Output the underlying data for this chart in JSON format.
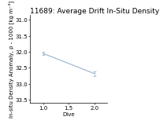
{
  "title": "11689: Average Drift In-Situ Density",
  "xlabel": "Dive",
  "ylabel": "In-situ Density Anomaly, ρ - 1000 [kg m⁻³]",
  "x": [
    1,
    2
  ],
  "y": [
    32.05,
    32.68
  ],
  "yerr": [
    0.04,
    0.07
  ],
  "line_color": "#8aa8c8",
  "xlim": [
    0.75,
    2.25
  ],
  "ylim": [
    33.6,
    30.85
  ],
  "yticks": [
    31.0,
    31.5,
    32.0,
    32.5,
    33.0,
    33.5
  ],
  "xticks": [
    1,
    1.5,
    2
  ],
  "title_fontsize": 6.5,
  "label_fontsize": 5.0,
  "tick_fontsize": 5.0,
  "background_color": "#ffffff"
}
